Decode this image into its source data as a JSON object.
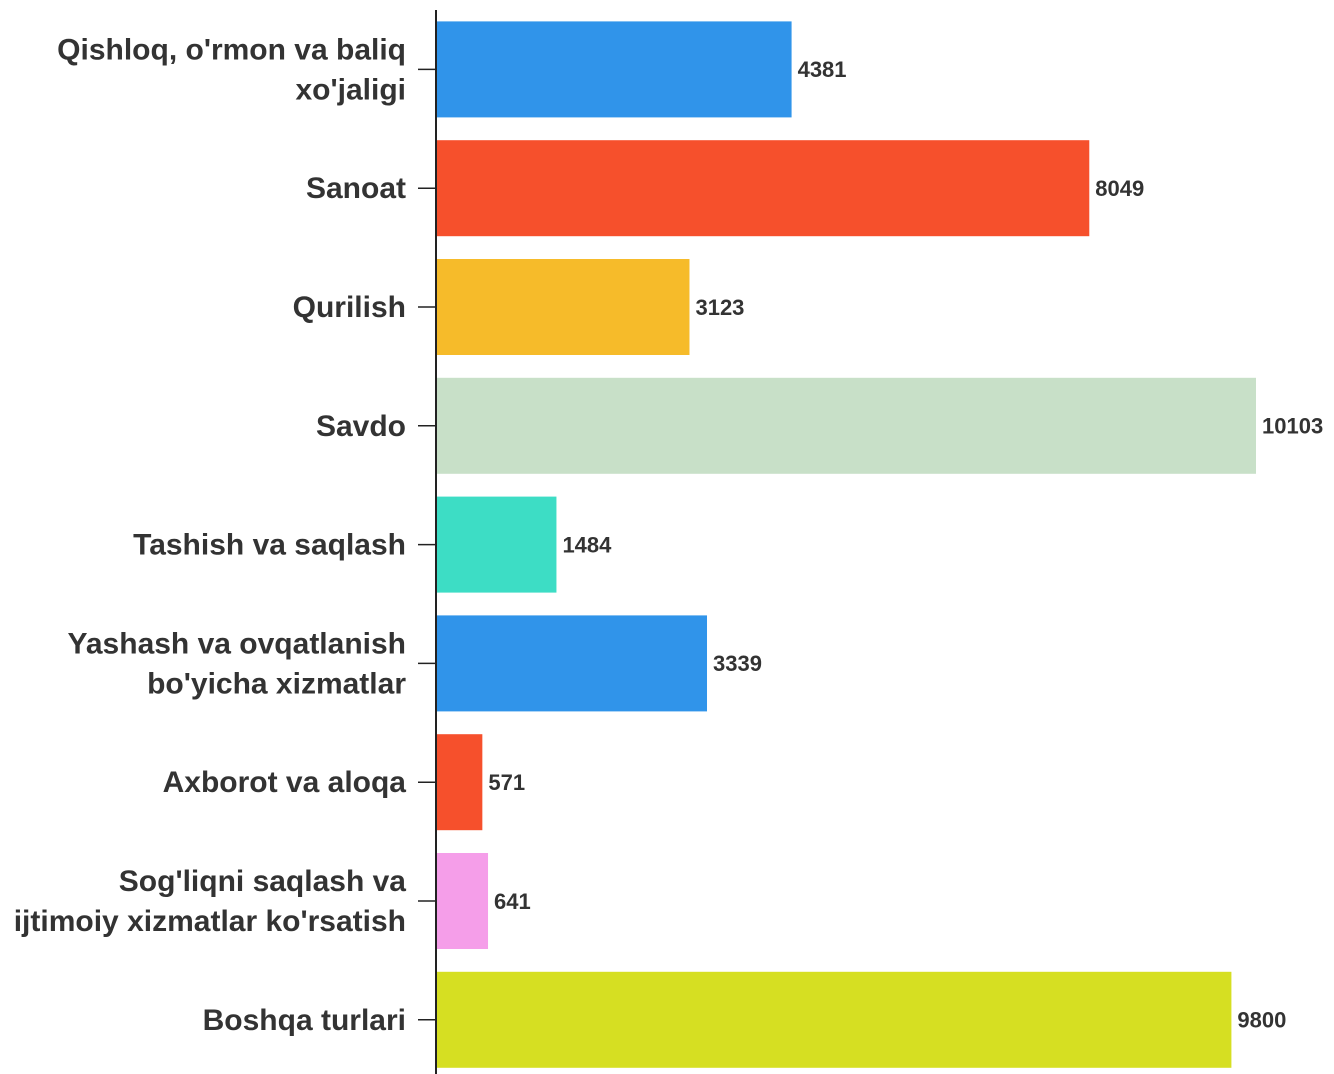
{
  "chart_data": {
    "type": "bar",
    "orientation": "horizontal",
    "categories": [
      "Qishloq, o'rmon va baliq xo'jaligi",
      "Sanoat",
      "Qurilish",
      "Savdo",
      "Tashish va saqlash",
      "Yashash va ovqatlanish bo'yicha xizmatlar",
      "Axborot va aloqa",
      "Sog'liqni saqlash va ijtimoiy xizmatlar ko'rsatish",
      "Boshqa turlari"
    ],
    "values": [
      4381,
      8049,
      3123,
      10103,
      1484,
      3339,
      571,
      641,
      9800
    ],
    "colors": [
      "#3094ea",
      "#f6502c",
      "#f6bb2a",
      "#c8e0c8",
      "#3dddc5",
      "#3094ea",
      "#f6502c",
      "#f59ee9",
      "#d6df22"
    ],
    "xlim": [
      0,
      10103
    ]
  }
}
